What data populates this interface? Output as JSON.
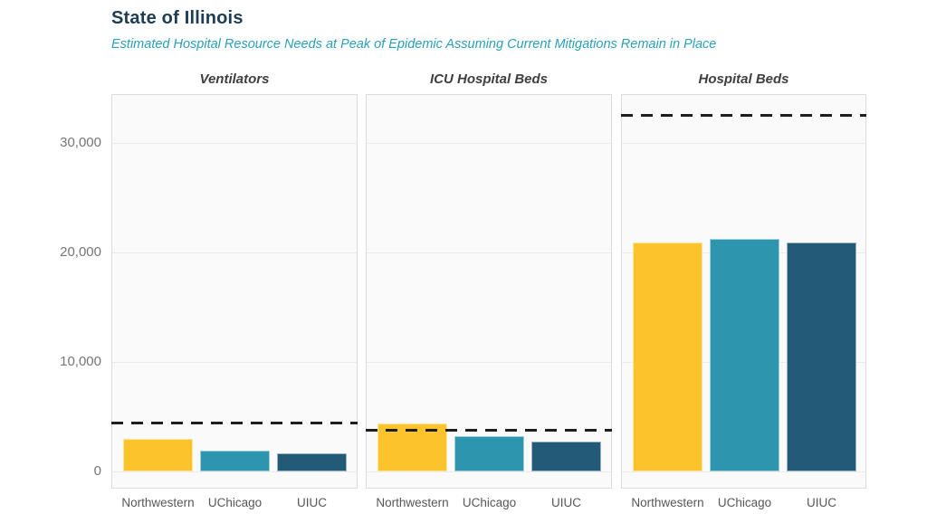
{
  "header": {
    "title": "State of Illinois",
    "subtitle": "Estimated Hospital Resource Needs at Peak of Epidemic Assuming Current Mitigations Remain in Place"
  },
  "chart_data": {
    "type": "bar",
    "title": "State of Illinois",
    "subtitle": "Estimated Hospital Resource Needs at Peak of Epidemic Assuming Current Mitigations Remain in Place",
    "categories": [
      "Northwestern",
      "UChicago",
      "UIUC"
    ],
    "facets": [
      {
        "title": "Ventilators",
        "capacity_line": 4460,
        "values": [
          3000,
          1900,
          1650
        ]
      },
      {
        "title": "ICU Hospital Beds",
        "capacity_line": 3800,
        "values": [
          4400,
          3200,
          2700
        ]
      },
      {
        "title": "Hospital Beds",
        "capacity_line": 32560,
        "values": [
          20950,
          21250,
          20900
        ]
      }
    ],
    "yticks": [
      0,
      10000,
      20000,
      30000
    ],
    "ytick_labels": [
      "0",
      "10,000",
      "20,000",
      "30,000"
    ],
    "ylim": [
      0,
      34500
    ],
    "grid": "horizontal",
    "legend": "none",
    "capacity_line_style": "dashed-black"
  },
  "colors": {
    "title": "#1C3D54",
    "subtitle": "#2AA0BA",
    "bars": [
      "#FDC32B",
      "#2E95AE",
      "#235A78"
    ],
    "capacity_line": "#1E1E1E",
    "panel_bg": "#FAFAFA",
    "panel_border": "#DCDCDC",
    "gridline": "#EBEBEB",
    "axis_text": "#757575",
    "facet_title": "#3F3F3F",
    "category_text": "#575757"
  }
}
